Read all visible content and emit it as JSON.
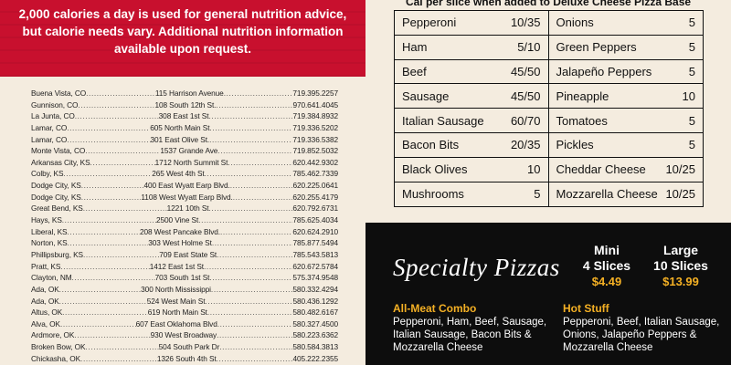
{
  "nutrition_note": {
    "line1": "2,000 calories a day is used for general nutrition advice,",
    "line2": "but calorie needs vary. Additional nutrition information",
    "line3": "available upon request."
  },
  "locations": [
    {
      "city": "Buena Vista, CO",
      "address": "115 Harrison Avenue",
      "phone": "719.395.2257"
    },
    {
      "city": "Gunnison, CO",
      "address": "108 South 12th St.",
      "phone": "970.641.4045"
    },
    {
      "city": "La Junta, CO",
      "address": "308 East 1st St",
      "phone": "719.384.8932"
    },
    {
      "city": "Lamar, CO",
      "address": "605 North Main St",
      "phone": "719.336.5202"
    },
    {
      "city": "Lamar, CO",
      "address": "301 East Olive St.",
      "phone": "719.336.5382"
    },
    {
      "city": "Monte Vista, CO",
      "address": "1537 Grande Ave",
      "phone": "719.852.5032"
    },
    {
      "city": "Arkansas City, KS",
      "address": "1712 North Summit St",
      "phone": "620.442.9302"
    },
    {
      "city": "Colby, KS",
      "address": "265 West 4th St",
      "phone": "785.462.7339"
    },
    {
      "city": "Dodge City, KS",
      "address": "400 East Wyatt Earp Blvd.",
      "phone": "620.225.0641"
    },
    {
      "city": "Dodge City, KS",
      "address": "1108 West Wyatt Earp Blvd.",
      "phone": "620.255.4179"
    },
    {
      "city": "Great Bend, KS",
      "address": "1221 10th St",
      "phone": "620.792.6731"
    },
    {
      "city": "Hays, KS",
      "address": "2500 Vine St",
      "phone": "785.625.4034"
    },
    {
      "city": "Liberal, KS",
      "address": "208 West Pancake Blvd.",
      "phone": "620.624.2910"
    },
    {
      "city": "Norton, KS",
      "address": "303 West Holme St",
      "phone": "785.877.5494"
    },
    {
      "city": "Phillipsburg, KS",
      "address": "709 East State St",
      "phone": "785.543.5813"
    },
    {
      "city": "Pratt, KS",
      "address": "1412 East 1st St",
      "phone": "620.672.5784"
    },
    {
      "city": "Clayton, NM",
      "address": "703 South 1st St",
      "phone": "575.374.9548"
    },
    {
      "city": "Ada, OK",
      "address": "300 North Mississippi",
      "phone": "580.332.4294"
    },
    {
      "city": "Ada, OK",
      "address": "524 West Main St",
      "phone": "580.436.1292"
    },
    {
      "city": "Altus, OK",
      "address": "619 North Main St",
      "phone": "580.482.6167"
    },
    {
      "city": "Alva, OK",
      "address": "607 East Oklahoma Blvd",
      "phone": "580.327.4500"
    },
    {
      "city": "Ardmore, OK",
      "address": "930 West Broadway",
      "phone": "580.223.6362"
    },
    {
      "city": "Broken Bow, OK",
      "address": "504 South Park Dr",
      "phone": "580.584.3813"
    },
    {
      "city": "Chickasha, OK",
      "address": "1326 South 4th St",
      "phone": "405.222.2355"
    }
  ],
  "toppings_header": "Cal per slice when added to Deluxe Cheese Pizza Base",
  "toppings": [
    {
      "name": "Pepperoni",
      "cal": "10/35"
    },
    {
      "name": "Onions",
      "cal": "5"
    },
    {
      "name": "Ham",
      "cal": "5/10"
    },
    {
      "name": "Green Peppers",
      "cal": "5"
    },
    {
      "name": "Beef",
      "cal": "45/50"
    },
    {
      "name": "Jalapeño Peppers",
      "cal": "5"
    },
    {
      "name": "Sausage",
      "cal": "45/50"
    },
    {
      "name": "Pineapple",
      "cal": "10"
    },
    {
      "name": "Italian Sausage",
      "cal": "60/70"
    },
    {
      "name": "Tomatoes",
      "cal": "5"
    },
    {
      "name": "Bacon Bits",
      "cal": "20/35"
    },
    {
      "name": "Pickles",
      "cal": "5"
    },
    {
      "name": "Black Olives",
      "cal": "10"
    },
    {
      "name": "Cheddar Cheese",
      "cal": "10/25"
    },
    {
      "name": "Mushrooms",
      "cal": "5"
    },
    {
      "name": "Mozzarella Cheese",
      "cal": "10/25"
    }
  ],
  "specialty": {
    "title": "Specialty Pizzas",
    "mini": {
      "name": "Mini",
      "slices": "4 Slices",
      "price": "$4.49"
    },
    "large": {
      "name": "Large",
      "slices": "10 Slices",
      "price": "$13.99"
    },
    "pizzas": [
      {
        "name": "All-Meat Combo",
        "desc": "Pepperoni, Ham, Beef, Sausage, Italian Sausage, Bacon Bits & Mozzarella Cheese"
      },
      {
        "name": "Hot Stuff",
        "desc": "Pepperoni, Beef, Italian Sausage, Onions, Jalapeño Peppers & Mozzarella Cheese"
      }
    ]
  },
  "colors": {
    "banner_red": "#c8102e",
    "price_gold": "#f4b024",
    "paper": "#f4ecdf",
    "black": "#0d0d0d"
  }
}
